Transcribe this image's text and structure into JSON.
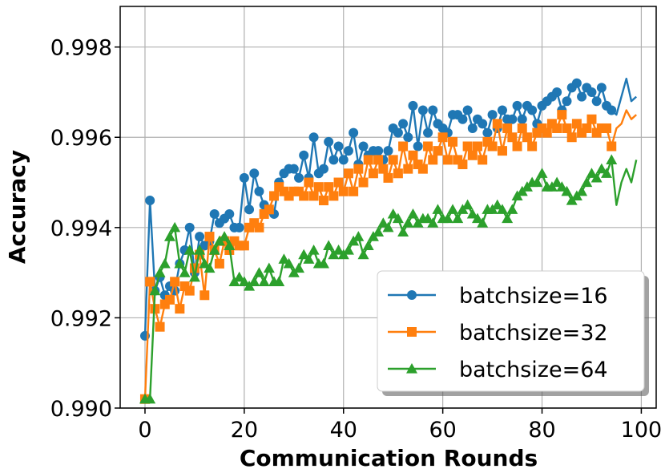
{
  "chart_data": {
    "type": "line",
    "title": "",
    "xlabel": "Communication Rounds",
    "ylabel": "Accuracy",
    "xlim": [
      -5,
      103
    ],
    "ylim": [
      0.99,
      0.9989
    ],
    "xticks": [
      0,
      20,
      40,
      60,
      80,
      100
    ],
    "yticks": [
      0.99,
      0.992,
      0.994,
      0.996,
      0.998
    ],
    "ytick_labels": [
      "0.990",
      "0.992",
      "0.994",
      "0.996",
      "0.998"
    ],
    "grid": true,
    "legend_position": "lower-right",
    "series": [
      {
        "name": "batchsize=16",
        "color": "#1f77b4",
        "marker": "circle",
        "values": [
          0.9916,
          0.9946,
          0.9926,
          0.9929,
          0.9925,
          0.9927,
          0.9926,
          0.9932,
          0.9935,
          0.994,
          0.993,
          0.9938,
          0.9936,
          0.9937,
          0.9943,
          0.9941,
          0.9942,
          0.9943,
          0.994,
          0.994,
          0.9951,
          0.9944,
          0.9952,
          0.9948,
          0.9945,
          0.9944,
          0.9943,
          0.995,
          0.9952,
          0.9953,
          0.9953,
          0.9951,
          0.9956,
          0.9951,
          0.996,
          0.9952,
          0.9953,
          0.9959,
          0.9955,
          0.9958,
          0.9955,
          0.9957,
          0.9961,
          0.9954,
          0.9958,
          0.9956,
          0.9957,
          0.9957,
          0.9955,
          0.9957,
          0.9962,
          0.9961,
          0.9963,
          0.996,
          0.9967,
          0.9958,
          0.9966,
          0.9961,
          0.9966,
          0.9963,
          0.9962,
          0.9961,
          0.9965,
          0.9965,
          0.9964,
          0.9966,
          0.9962,
          0.9964,
          0.9963,
          0.9961,
          0.9965,
          0.9962,
          0.9966,
          0.9964,
          0.9964,
          0.9967,
          0.9964,
          0.9967,
          0.9966,
          0.9963,
          0.9967,
          0.9968,
          0.9969,
          0.997,
          0.9966,
          0.9968,
          0.9971,
          0.9972,
          0.9969,
          0.9971,
          0.997,
          0.9968,
          0.9971,
          0.9967,
          0.9966,
          0.9965,
          0.9969,
          0.9973,
          0.9968,
          0.9969
        ],
        "markers_until": 94
      },
      {
        "name": "batchsize=32",
        "color": "#ff7f0e",
        "marker": "square",
        "values": [
          0.9902,
          0.9928,
          0.9922,
          0.9918,
          0.9923,
          0.9924,
          0.9928,
          0.9922,
          0.9927,
          0.9926,
          0.9931,
          0.9934,
          0.9925,
          0.9938,
          0.9935,
          0.9932,
          0.9937,
          0.9935,
          0.9937,
          0.9936,
          0.9936,
          0.994,
          0.9941,
          0.994,
          0.9943,
          0.9944,
          0.9947,
          0.9949,
          0.9948,
          0.9947,
          0.9948,
          0.9948,
          0.9947,
          0.995,
          0.9947,
          0.9949,
          0.9946,
          0.9949,
          0.9947,
          0.995,
          0.9948,
          0.9952,
          0.9948,
          0.9953,
          0.995,
          0.9955,
          0.9952,
          0.9955,
          0.9953,
          0.9951,
          0.9955,
          0.9952,
          0.9958,
          0.9953,
          0.9956,
          0.9954,
          0.9953,
          0.9958,
          0.9955,
          0.9957,
          0.996,
          0.9955,
          0.9959,
          0.9955,
          0.9954,
          0.9958,
          0.9956,
          0.9958,
          0.9955,
          0.9959,
          0.9958,
          0.9963,
          0.9957,
          0.9962,
          0.996,
          0.9958,
          0.9962,
          0.996,
          0.9958,
          0.9961,
          0.9962,
          0.9961,
          0.9963,
          0.9962,
          0.9965,
          0.9962,
          0.996,
          0.9963,
          0.9961,
          0.9962,
          0.9964,
          0.9961,
          0.9962,
          0.9962,
          0.9958,
          0.9962,
          0.9963,
          0.9966,
          0.9964,
          0.9965
        ],
        "markers_until": 94
      },
      {
        "name": "batchsize=64",
        "color": "#2ca02c",
        "marker": "triangle",
        "values": [
          0.9902,
          0.9902,
          0.9926,
          0.993,
          0.9932,
          0.9938,
          0.994,
          0.9932,
          0.993,
          0.9935,
          0.9929,
          0.9935,
          0.9932,
          0.9931,
          0.9935,
          0.9937,
          0.9938,
          0.9936,
          0.9928,
          0.9929,
          0.9928,
          0.9927,
          0.9928,
          0.993,
          0.9928,
          0.9931,
          0.9928,
          0.9928,
          0.9933,
          0.9932,
          0.993,
          0.9931,
          0.9934,
          0.9933,
          0.9935,
          0.9932,
          0.9932,
          0.9936,
          0.9934,
          0.9935,
          0.9934,
          0.9935,
          0.9937,
          0.9938,
          0.9934,
          0.9936,
          0.9938,
          0.9939,
          0.9941,
          0.994,
          0.9943,
          0.9942,
          0.9939,
          0.9941,
          0.9943,
          0.9941,
          0.9942,
          0.9942,
          0.9941,
          0.9944,
          0.9942,
          0.9942,
          0.9944,
          0.9942,
          0.9944,
          0.9945,
          0.9943,
          0.9942,
          0.9941,
          0.9944,
          0.9944,
          0.9945,
          0.9944,
          0.9942,
          0.9944,
          0.9947,
          0.9948,
          0.9949,
          0.995,
          0.995,
          0.9952,
          0.9949,
          0.9949,
          0.995,
          0.9949,
          0.9948,
          0.9946,
          0.9947,
          0.9948,
          0.995,
          0.9952,
          0.9951,
          0.9953,
          0.9952,
          0.9955,
          0.9945,
          0.995,
          0.9953,
          0.995,
          0.9955
        ],
        "markers_until": 94
      }
    ]
  }
}
